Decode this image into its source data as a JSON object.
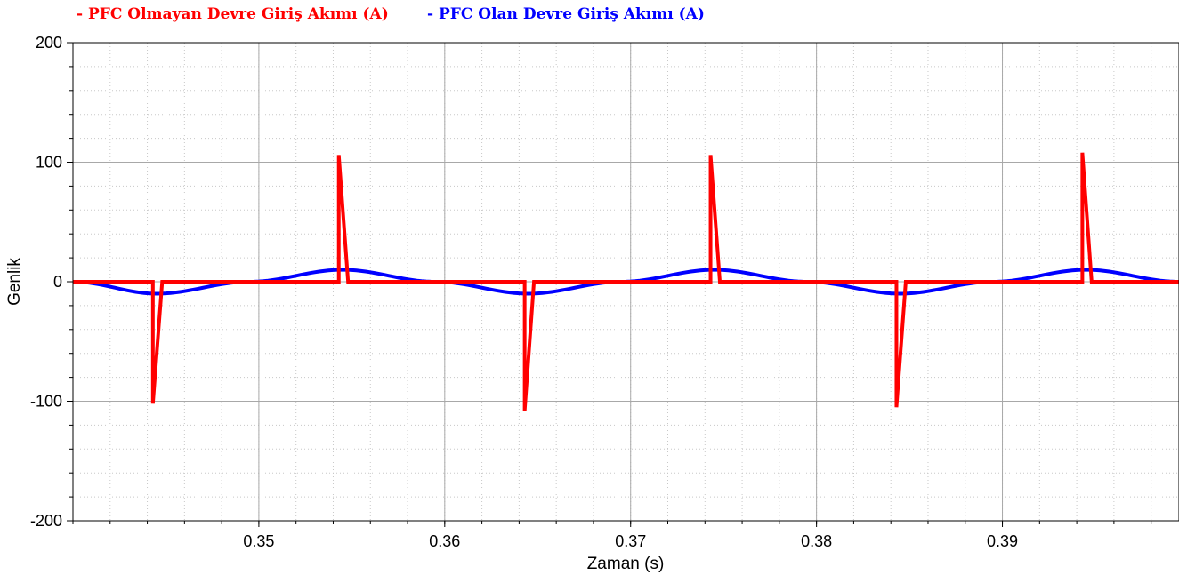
{
  "chart_data": {
    "type": "line",
    "xlabel": "Zaman (s)",
    "ylabel": "Genlik",
    "xlim": [
      0.34,
      0.3995
    ],
    "ylim": [
      -200,
      200
    ],
    "x_ticks": [
      0.35,
      0.36,
      0.37,
      0.38,
      0.39
    ],
    "x_tick_labels": [
      "0.35",
      "0.36",
      "0.37",
      "0.38",
      "0.39"
    ],
    "y_ticks": [
      -200,
      -100,
      0,
      100,
      200
    ],
    "y_tick_labels": [
      "-200",
      "-100",
      "0",
      "100",
      "200"
    ],
    "grid": true,
    "legend_position": "top-left",
    "series": [
      {
        "name": "- PFC Olmayan Devre Giriş Akımı (A)",
        "color": "#ff0000",
        "x": [
          0.34,
          0.3443,
          0.3443,
          0.3448,
          0.3448,
          0.3543,
          0.3543,
          0.3548,
          0.3548,
          0.3643,
          0.3643,
          0.3648,
          0.3648,
          0.3743,
          0.3743,
          0.3748,
          0.3748,
          0.3843,
          0.3843,
          0.3848,
          0.3848,
          0.3943,
          0.3943,
          0.3948,
          0.3948,
          0.3995
        ],
        "y": [
          0,
          0,
          -102,
          0,
          0,
          0,
          106,
          0,
          0,
          0,
          -108,
          0,
          0,
          0,
          106,
          0,
          0,
          0,
          -105,
          0,
          0,
          0,
          108,
          0,
          0,
          0
        ]
      },
      {
        "name": "- PFC Olan Devre Giriş Akımı (A)",
        "color": "#0000ff",
        "x": [
          0.34,
          0.3445,
          0.3495,
          0.3545,
          0.3595,
          0.3645,
          0.3695,
          0.3745,
          0.3795,
          0.3845,
          0.3895,
          0.3945,
          0.3995
        ],
        "y": [
          0,
          -10,
          0,
          10,
          0,
          -10,
          0,
          10,
          0,
          -10,
          0,
          10,
          0
        ]
      }
    ]
  }
}
